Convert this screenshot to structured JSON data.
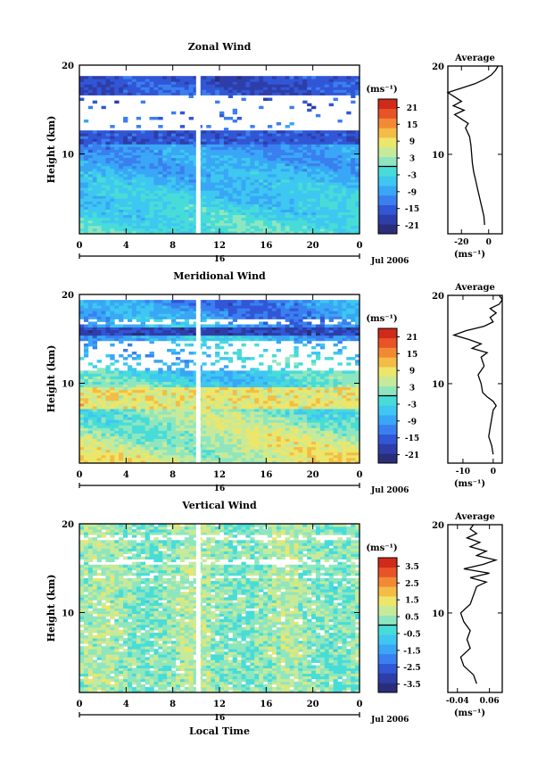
{
  "chart_data": [
    {
      "type": "heatmap",
      "title": "Zonal Wind",
      "ylabel": "Height (km)",
      "xlabel": "",
      "x_ticks": [
        "0",
        "4",
        "8",
        "12",
        "16",
        "20",
        "0"
      ],
      "y_ticks": [
        "20",
        "10"
      ],
      "xlim": [
        0,
        24
      ],
      "ylim": [
        1,
        20
      ],
      "date_tick": "16",
      "date_label": "Jul 2006",
      "colorbar": {
        "unit": "(ms⁻¹)",
        "ticks": [
          "21",
          "15",
          "9",
          "3",
          "-3",
          "-9",
          "-15",
          "-21"
        ],
        "range": [
          -24,
          24
        ]
      },
      "profile": {
        "title": "Average",
        "x_ticks": [
          "-20",
          "0"
        ],
        "xlabel": "(ms⁻¹)",
        "y_ticks": [
          "20",
          "10"
        ],
        "xlim": [
          -30,
          10
        ],
        "points": [
          [
            -3,
            2
          ],
          [
            -3.5,
            3
          ],
          [
            -5,
            4
          ],
          [
            -6.5,
            5
          ],
          [
            -8,
            6
          ],
          [
            -9.5,
            7
          ],
          [
            -11,
            8
          ],
          [
            -12,
            9
          ],
          [
            -12.5,
            10
          ],
          [
            -13,
            11
          ],
          [
            -14,
            12
          ],
          [
            -17,
            13
          ],
          [
            -15,
            13.5
          ],
          [
            -20,
            14
          ],
          [
            -25,
            14.5
          ],
          [
            -18,
            15
          ],
          [
            -26,
            15.5
          ],
          [
            -20,
            16
          ],
          [
            -25,
            16.5
          ],
          [
            -30,
            17
          ],
          [
            -20,
            17.5
          ],
          [
            -10,
            18
          ],
          [
            -3,
            18.5
          ],
          [
            2,
            19
          ],
          [
            5,
            19.5
          ],
          [
            7,
            20
          ]
        ]
      }
    },
    {
      "type": "heatmap",
      "title": "Meridional Wind",
      "ylabel": "Height (km)",
      "xlabel": "",
      "x_ticks": [
        "0",
        "4",
        "8",
        "12",
        "16",
        "20",
        "0"
      ],
      "y_ticks": [
        "20",
        "10"
      ],
      "xlim": [
        0,
        24
      ],
      "ylim": [
        1,
        20
      ],
      "date_tick": "16",
      "date_label": "Jul 2006",
      "colorbar": {
        "unit": "(ms⁻¹)",
        "ticks": [
          "21",
          "15",
          "9",
          "3",
          "-3",
          "-9",
          "-15",
          "-21"
        ],
        "range": [
          -24,
          24
        ]
      },
      "profile": {
        "title": "Average",
        "x_ticks": [
          "-10",
          "0"
        ],
        "xlabel": "(ms⁻¹)",
        "y_ticks": [
          "20",
          "10"
        ],
        "xlim": [
          -15,
          3
        ],
        "points": [
          [
            0,
            2
          ],
          [
            -0.5,
            3
          ],
          [
            -1.5,
            4
          ],
          [
            -1,
            5
          ],
          [
            -0.5,
            6
          ],
          [
            0,
            7
          ],
          [
            1,
            7.5
          ],
          [
            0,
            8
          ],
          [
            -2,
            8.5
          ],
          [
            -3.5,
            9
          ],
          [
            -4,
            10
          ],
          [
            -5,
            11
          ],
          [
            -3,
            12
          ],
          [
            -4,
            13
          ],
          [
            -2,
            13.5
          ],
          [
            -7,
            14
          ],
          [
            -4,
            14.5
          ],
          [
            -8,
            15
          ],
          [
            -13,
            15.5
          ],
          [
            -9,
            16
          ],
          [
            -3,
            16.5
          ],
          [
            0,
            17
          ],
          [
            -1,
            17.5
          ],
          [
            1,
            18
          ],
          [
            -1,
            18.5
          ],
          [
            2,
            19
          ],
          [
            3,
            19.5
          ],
          [
            2,
            20
          ]
        ]
      }
    },
    {
      "type": "heatmap",
      "title": "Vertical Wind",
      "ylabel": "Height (km)",
      "xlabel": "Local Time",
      "x_ticks": [
        "0",
        "4",
        "8",
        "12",
        "16",
        "20",
        "0"
      ],
      "y_ticks": [
        "20",
        "10"
      ],
      "xlim": [
        0,
        24
      ],
      "ylim": [
        1,
        20
      ],
      "date_tick": "16",
      "date_label": "Jul 2006",
      "colorbar": {
        "unit": "(ms⁻¹)",
        "ticks": [
          "3.5",
          "2.5",
          "1.5",
          "0.5",
          "-0.5",
          "-1.5",
          "-2.5",
          "-3.5"
        ],
        "range": [
          -4,
          4
        ]
      },
      "profile": {
        "title": "Average",
        "x_ticks": [
          "-0.04",
          "0.06"
        ],
        "xlabel": "(ms⁻¹)",
        "y_ticks": [
          "20",
          "10"
        ],
        "xlim": [
          -0.07,
          0.1
        ],
        "points": [
          [
            0.02,
            2
          ],
          [
            0.01,
            3
          ],
          [
            -0.02,
            4
          ],
          [
            -0.03,
            5
          ],
          [
            0.0,
            6
          ],
          [
            -0.01,
            7
          ],
          [
            0.0,
            8
          ],
          [
            -0.02,
            9
          ],
          [
            -0.03,
            10
          ],
          [
            0.0,
            11
          ],
          [
            0.01,
            12
          ],
          [
            0.02,
            13
          ],
          [
            0.05,
            13.5
          ],
          [
            0.0,
            14
          ],
          [
            0.06,
            14.5
          ],
          [
            -0.02,
            15
          ],
          [
            0.04,
            15.5
          ],
          [
            0.08,
            16
          ],
          [
            0.02,
            16.5
          ],
          [
            0.05,
            17
          ],
          [
            0.0,
            17.5
          ],
          [
            0.03,
            18
          ],
          [
            -0.01,
            18.5
          ],
          [
            0.02,
            19
          ],
          [
            0.0,
            19.5
          ],
          [
            0.01,
            20
          ]
        ]
      }
    }
  ]
}
